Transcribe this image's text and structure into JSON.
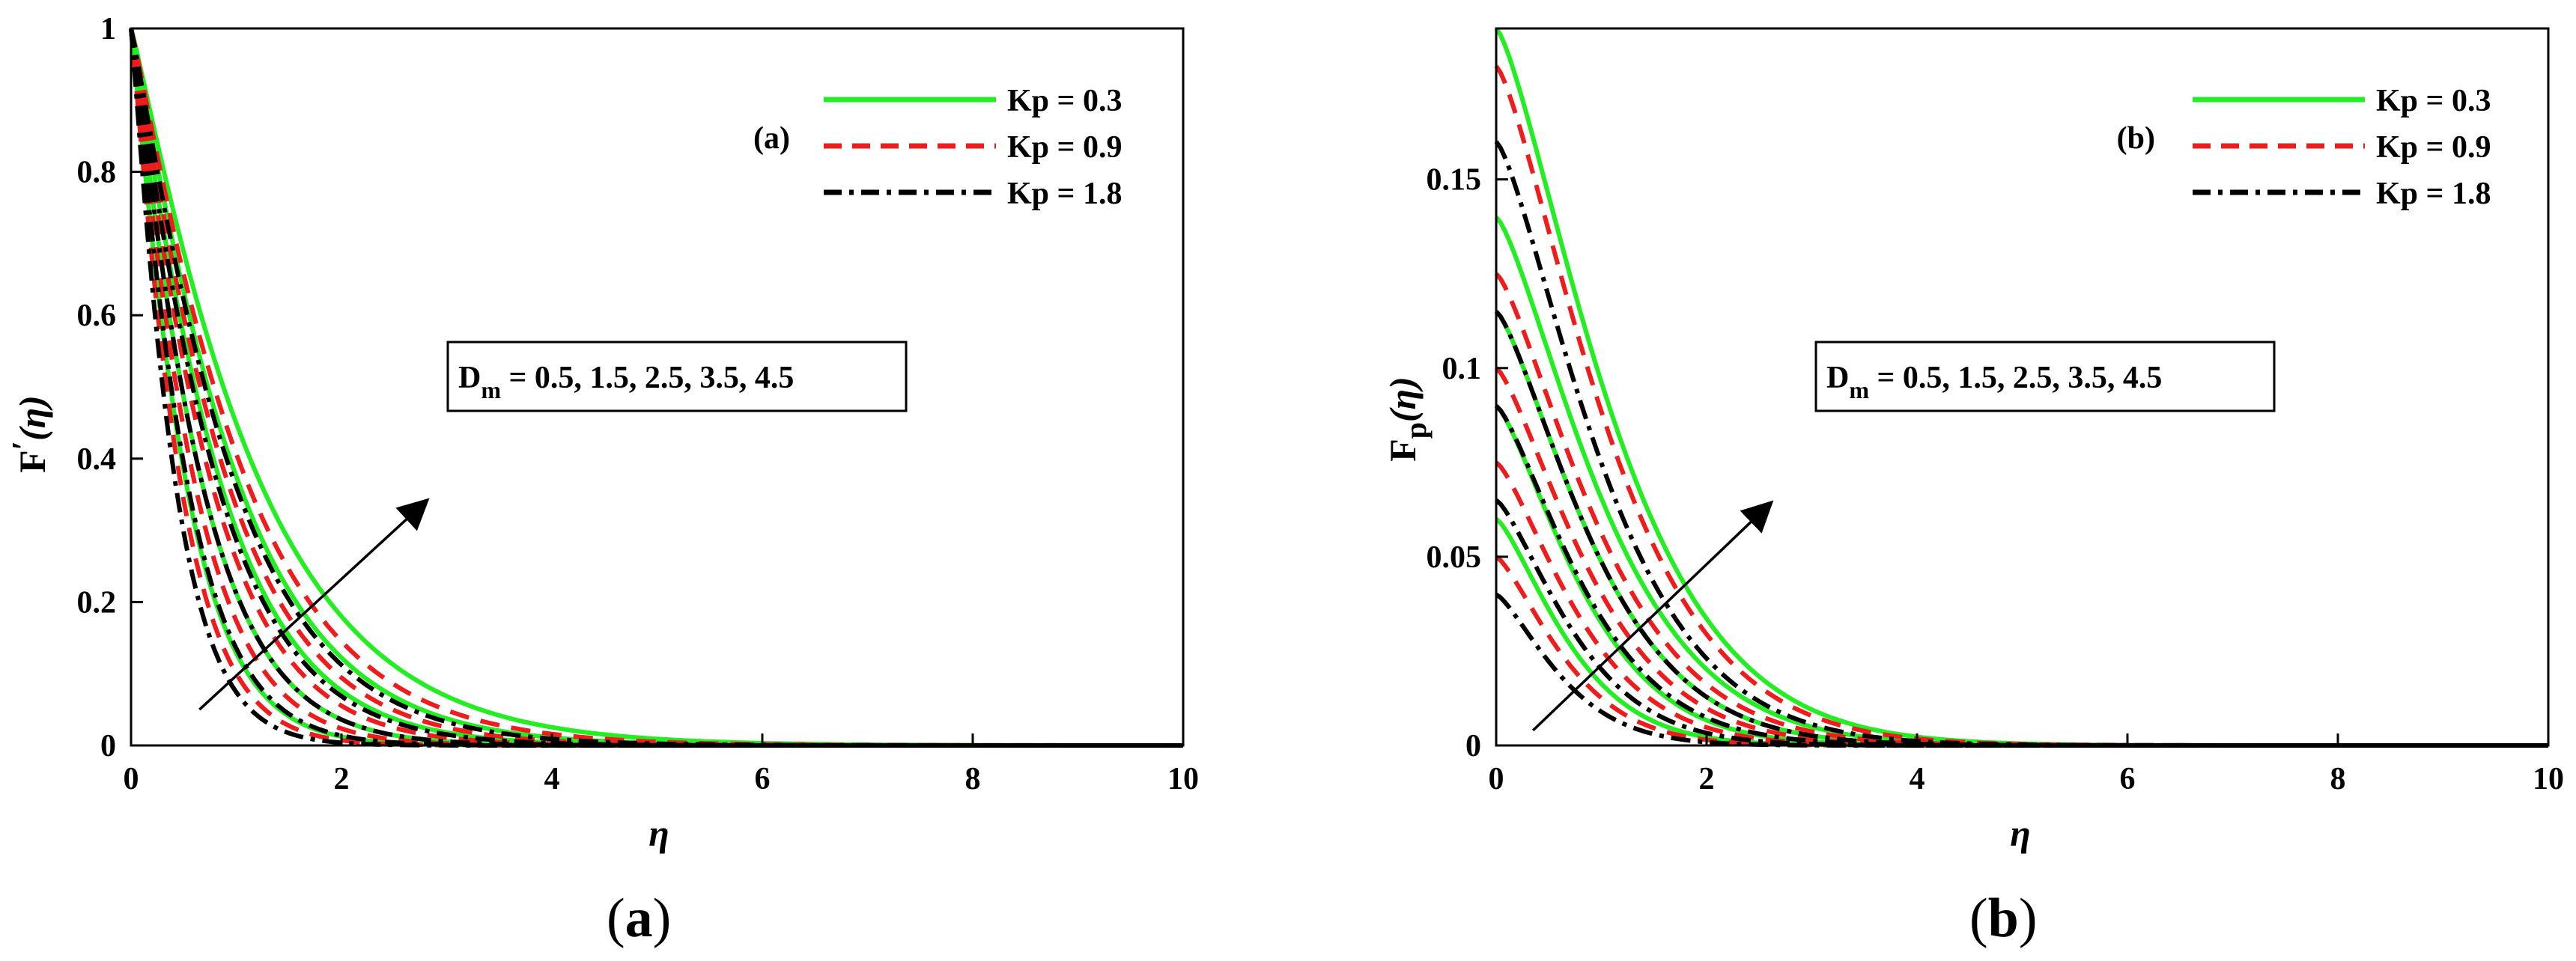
{
  "colors": {
    "kp_low": "#22ee22",
    "kp_mid": "#ee1c1c",
    "kp_high": "#000000",
    "axis": "#000000",
    "background": "#ffffff"
  },
  "chart_data": [
    {
      "type": "line",
      "panel_tag": "(a)",
      "caption": {
        "open": "(",
        "letter": "a",
        "close": ")"
      },
      "xlabel": "η",
      "ylabel": {
        "main": "F",
        "prime": "′",
        "arg": "(η)"
      },
      "xlim": [
        0,
        10
      ],
      "ylim": [
        0,
        1
      ],
      "xticks": [
        0,
        2,
        4,
        6,
        8,
        10
      ],
      "xtick_labels": [
        "0",
        "2",
        "4",
        "6",
        "8",
        "10"
      ],
      "yticks": [
        0,
        0.2,
        0.4,
        0.6,
        0.8,
        1
      ],
      "ytick_labels": [
        "0",
        "0.2",
        "0.4",
        "0.6",
        "0.8",
        "1"
      ],
      "legend": {
        "location": "top-right",
        "entries": [
          "Kp = 0.3",
          "Kp = 0.9",
          "Kp = 1.8"
        ]
      },
      "annotation": {
        "prefix": "D",
        "subscript": "m",
        "text": " = 0.5, 1.5, 2.5, 3.5, 4.5"
      },
      "arrow": {
        "from": [
          0.65,
          0.05
        ],
        "to": [
          2.8,
          0.34
        ]
      },
      "curve_model": "y = y0 * exp(-k * eta^1.1)",
      "series": [
        {
          "name": "Kp = 0.3",
          "style": "solid",
          "y0": [
            1,
            1,
            1,
            1,
            1
          ],
          "decay_k": [
            2.05,
            1.55,
            1.2,
            0.98,
            0.8
          ]
        },
        {
          "name": "Kp = 0.9",
          "style": "dashed",
          "y0": [
            1,
            1,
            1,
            1,
            1
          ],
          "decay_k": [
            2.3,
            1.75,
            1.35,
            1.1,
            0.9
          ]
        },
        {
          "name": "Kp = 1.8",
          "style": "dashdot",
          "y0": [
            1,
            1,
            1,
            1,
            1
          ],
          "decay_k": [
            2.6,
            2.0,
            1.55,
            1.25,
            1.02
          ]
        }
      ]
    },
    {
      "type": "line",
      "panel_tag": "(b)",
      "caption": {
        "open": "(",
        "letter": "b",
        "close": ")"
      },
      "xlabel": "η",
      "ylabel": {
        "main": "F",
        "sub": "p",
        "arg": "(η)"
      },
      "xlim": [
        0,
        10
      ],
      "ylim": [
        0,
        0.19
      ],
      "xticks": [
        0,
        2,
        4,
        6,
        8,
        10
      ],
      "xtick_labels": [
        "0",
        "2",
        "4",
        "6",
        "8",
        "10"
      ],
      "yticks": [
        0,
        0.05,
        0.1,
        0.15
      ],
      "ytick_labels": [
        "0",
        "0.05",
        "0.1",
        "0.15"
      ],
      "legend": {
        "location": "top-right",
        "entries": [
          "Kp = 0.3",
          "Kp = 0.9",
          "Kp = 1.8"
        ]
      },
      "annotation": {
        "prefix": "D",
        "subscript": "m",
        "text": " = 0.5, 1.5, 2.5, 3.5, 4.5"
      },
      "arrow": {
        "from": [
          0.35,
          0.004
        ],
        "to": [
          2.6,
          0.064
        ]
      },
      "curve_model": "y = y0 * exp(-k * eta^1.35)",
      "series": [
        {
          "name": "Kp = 0.3",
          "style": "solid",
          "y0": [
            0.06,
            0.09,
            0.115,
            0.14,
            0.19
          ],
          "decay_k": [
            1.3,
            1.02,
            0.86,
            0.76,
            0.68
          ]
        },
        {
          "name": "Kp = 0.9",
          "style": "dashed",
          "y0": [
            0.05,
            0.075,
            0.1,
            0.125,
            0.18
          ],
          "decay_k": [
            1.38,
            1.08,
            0.91,
            0.8,
            0.71
          ]
        },
        {
          "name": "Kp = 1.8",
          "style": "dashdot",
          "y0": [
            0.04,
            0.065,
            0.09,
            0.115,
            0.16
          ],
          "decay_k": [
            1.5,
            1.17,
            0.98,
            0.86,
            0.76
          ]
        }
      ]
    }
  ]
}
